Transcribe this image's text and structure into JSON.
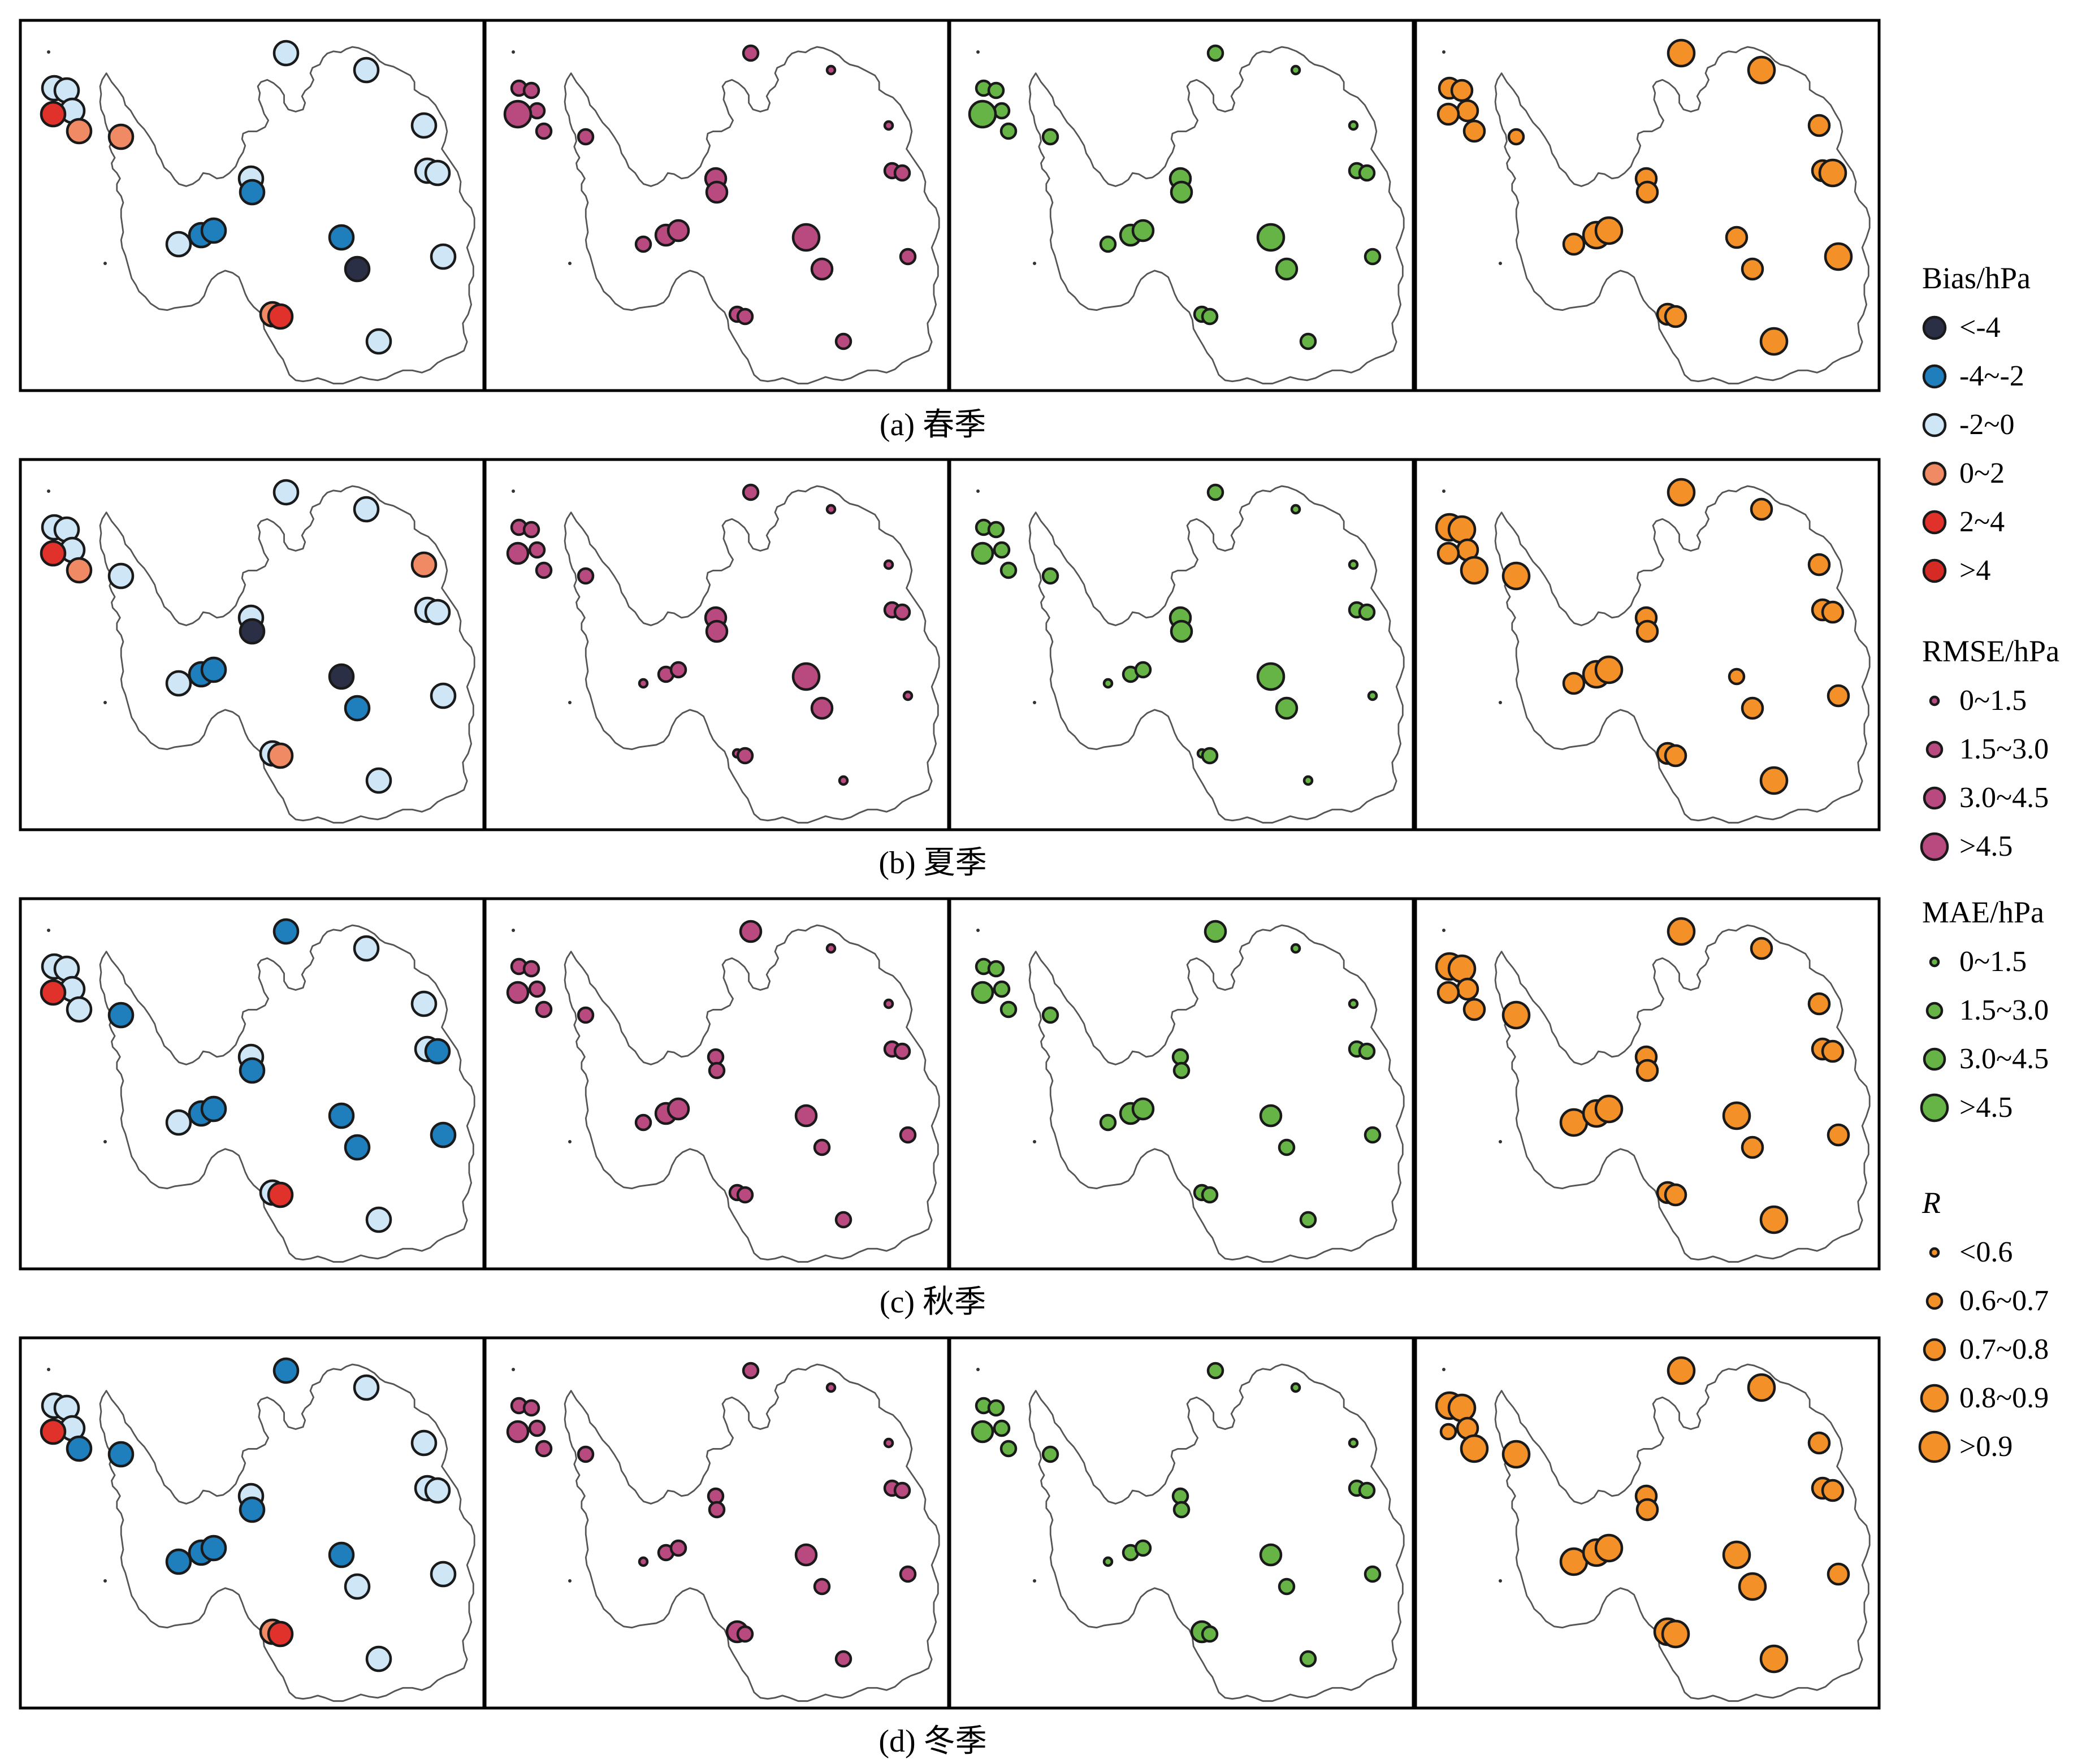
{
  "figure": {
    "rows": [
      {
        "caption": "(a) 春季"
      },
      {
        "caption": "(b) 夏季"
      },
      {
        "caption": "(c) 秋季"
      },
      {
        "caption": "(d) 冬季"
      }
    ],
    "columns": [
      "Bias",
      "RMSE",
      "MAE",
      "R"
    ]
  },
  "colors": {
    "bias_lt_neg4": "#2b2f45",
    "bias_neg4_neg2": "#1f7fbd",
    "bias_neg2_0": "#cfe6f6",
    "bias_0_2": "#f08a64",
    "bias_2_4": "#e0312b",
    "bias_gt4": "#d62a25",
    "rmse": "#b84a80",
    "mae": "#66b346",
    "r": "#f39128",
    "coast": "#555555"
  },
  "legend": {
    "bias": {
      "title": "Bias/hPa",
      "items": [
        {
          "label": "<-4",
          "color": "#2b2f45"
        },
        {
          "label": "-4~-2",
          "color": "#1f7fbd"
        },
        {
          "label": "-2~0",
          "color": "#cfe6f6"
        },
        {
          "label": "0~2",
          "color": "#f08a64"
        },
        {
          "label": "2~4",
          "color": "#e0312b"
        },
        {
          "label": ">4",
          "color": "#d62a25"
        }
      ]
    },
    "rmse": {
      "title": "RMSE/hPa",
      "items": [
        {
          "label": "0~1.5",
          "level": 1
        },
        {
          "label": "1.5~3.0",
          "level": 2
        },
        {
          "label": "3.0~4.5",
          "level": 3
        },
        {
          "label": ">4.5",
          "level": 4
        }
      ]
    },
    "mae": {
      "title": "MAE/hPa",
      "items": [
        {
          "label": "0~1.5",
          "level": 1
        },
        {
          "label": "1.5~3.0",
          "level": 2
        },
        {
          "label": "3.0~4.5",
          "level": 3
        },
        {
          "label": ">4.5",
          "level": 4
        }
      ]
    },
    "r": {
      "title": "R",
      "items": [
        {
          "label": "<0.6",
          "level": 1
        },
        {
          "label": "0.6~0.7",
          "level": 2
        },
        {
          "label": "0.7~0.8",
          "level": 3
        },
        {
          "label": "0.8~0.9",
          "level": 4
        },
        {
          "label": ">0.9",
          "level": 5
        }
      ]
    }
  }
}
